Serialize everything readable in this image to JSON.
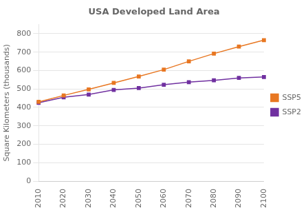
{
  "chart_data": {
    "type": "line",
    "title": "USA Developed Land Area",
    "ylabel": "Square Kilometers (thousands)",
    "x": [
      2010,
      2020,
      2030,
      2040,
      2050,
      2060,
      2070,
      2080,
      2090,
      2100
    ],
    "series": [
      {
        "name": "SSP5",
        "color": "#E87722",
        "marker": "square",
        "values": [
          430,
          465,
          498,
          533,
          568,
          605,
          650,
          692,
          730,
          765
        ]
      },
      {
        "name": "SSP2",
        "color": "#7030A0",
        "marker": "square",
        "values": [
          425,
          455,
          470,
          495,
          505,
          523,
          537,
          547,
          560,
          565
        ]
      }
    ],
    "xlim": [
      2010,
      2100
    ],
    "xticks": [
      2010,
      2020,
      2030,
      2040,
      2050,
      2060,
      2070,
      2080,
      2090,
      2100
    ],
    "ylim": [
      0,
      850
    ],
    "yticks": [
      0,
      100,
      200,
      300,
      400,
      500,
      600,
      700,
      800
    ],
    "grid": "y",
    "legend": "right"
  }
}
